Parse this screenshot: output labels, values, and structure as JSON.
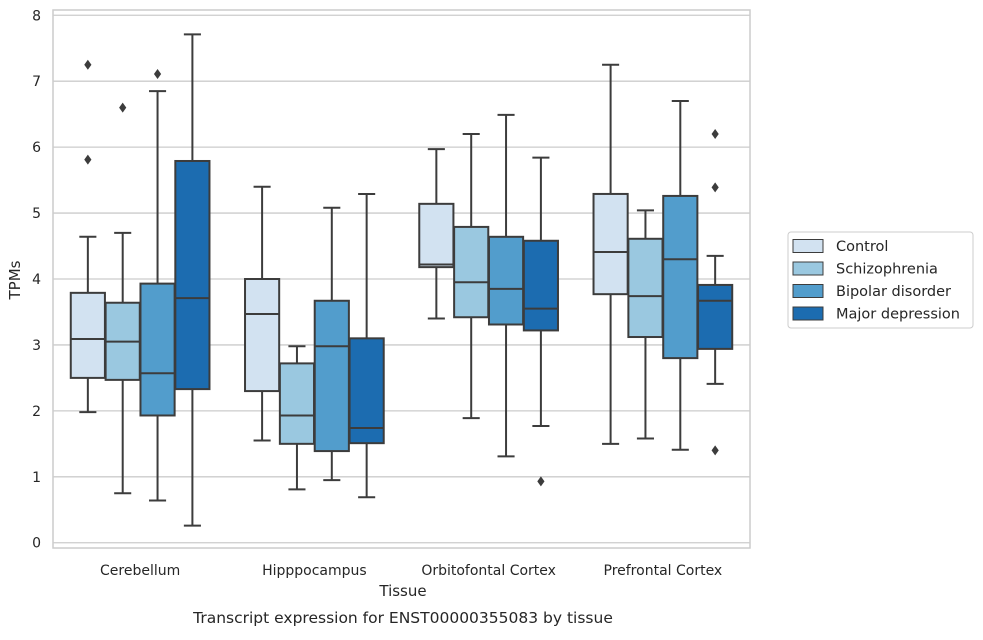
{
  "chart_data": {
    "type": "boxplot",
    "caption": "Transcript expression for ENST00000355083 by tissue",
    "xlabel": "Tissue",
    "ylabel": "TPMs",
    "ylim": [
      -0.08,
      8.08
    ],
    "yticks": [
      0,
      1,
      2,
      3,
      4,
      5,
      6,
      7,
      8
    ],
    "grid": true,
    "legend_position": "right",
    "categories": [
      "Cerebellum",
      "Hipppocampus",
      "Orbitofontal Cortex",
      "Prefrontal Cortex"
    ],
    "series": [
      {
        "name": "Control",
        "color": "#d2e2f1",
        "boxes": [
          {
            "whisker_low": 1.98,
            "q1": 2.5,
            "median": 3.09,
            "q3": 3.79,
            "whisker_high": 4.64,
            "outliers": [
              5.81,
              7.25
            ]
          },
          {
            "whisker_low": 1.55,
            "q1": 2.3,
            "median": 3.47,
            "q3": 4.0,
            "whisker_high": 5.4,
            "outliers": []
          },
          {
            "whisker_low": 3.4,
            "q1": 4.18,
            "median": 4.22,
            "q3": 5.14,
            "whisker_high": 5.97,
            "outliers": []
          },
          {
            "whisker_low": 1.5,
            "q1": 3.77,
            "median": 4.41,
            "q3": 5.29,
            "whisker_high": 7.25,
            "outliers": []
          }
        ]
      },
      {
        "name": "Schizophrenia",
        "color": "#9ac8e0",
        "boxes": [
          {
            "whisker_low": 0.75,
            "q1": 2.47,
            "median": 3.05,
            "q3": 3.64,
            "whisker_high": 4.7,
            "outliers": [
              6.6
            ]
          },
          {
            "whisker_low": 0.81,
            "q1": 1.5,
            "median": 1.93,
            "q3": 2.72,
            "whisker_high": 2.98,
            "outliers": []
          },
          {
            "whisker_low": 1.89,
            "q1": 3.42,
            "median": 3.95,
            "q3": 4.79,
            "whisker_high": 6.2,
            "outliers": []
          },
          {
            "whisker_low": 1.58,
            "q1": 3.12,
            "median": 3.74,
            "q3": 4.61,
            "whisker_high": 5.04,
            "outliers": []
          }
        ]
      },
      {
        "name": "Bipolar disorder",
        "color": "#529dcc",
        "boxes": [
          {
            "whisker_low": 0.64,
            "q1": 1.93,
            "median": 2.57,
            "q3": 3.93,
            "whisker_high": 6.85,
            "outliers": [
              7.11
            ]
          },
          {
            "whisker_low": 0.95,
            "q1": 1.39,
            "median": 2.98,
            "q3": 3.67,
            "whisker_high": 5.08,
            "outliers": []
          },
          {
            "whisker_low": 1.31,
            "q1": 3.31,
            "median": 3.85,
            "q3": 4.64,
            "whisker_high": 6.49,
            "outliers": []
          },
          {
            "whisker_low": 1.41,
            "q1": 2.8,
            "median": 4.3,
            "q3": 5.26,
            "whisker_high": 6.7,
            "outliers": []
          }
        ]
      },
      {
        "name": "Major depression",
        "color": "#1c6cb0",
        "boxes": [
          {
            "whisker_low": 0.26,
            "q1": 2.33,
            "median": 3.71,
            "q3": 5.79,
            "whisker_high": 7.71,
            "outliers": []
          },
          {
            "whisker_low": 0.69,
            "q1": 1.51,
            "median": 1.74,
            "q3": 3.1,
            "whisker_high": 5.29,
            "outliers": []
          },
          {
            "whisker_low": 1.77,
            "q1": 3.22,
            "median": 3.55,
            "q3": 4.58,
            "whisker_high": 5.84,
            "outliers": [
              0.93
            ]
          },
          {
            "whisker_low": 2.41,
            "q1": 2.94,
            "median": 3.67,
            "q3": 3.91,
            "whisker_high": 4.35,
            "outliers": [
              1.4,
              5.39,
              6.2
            ]
          }
        ]
      }
    ]
  }
}
